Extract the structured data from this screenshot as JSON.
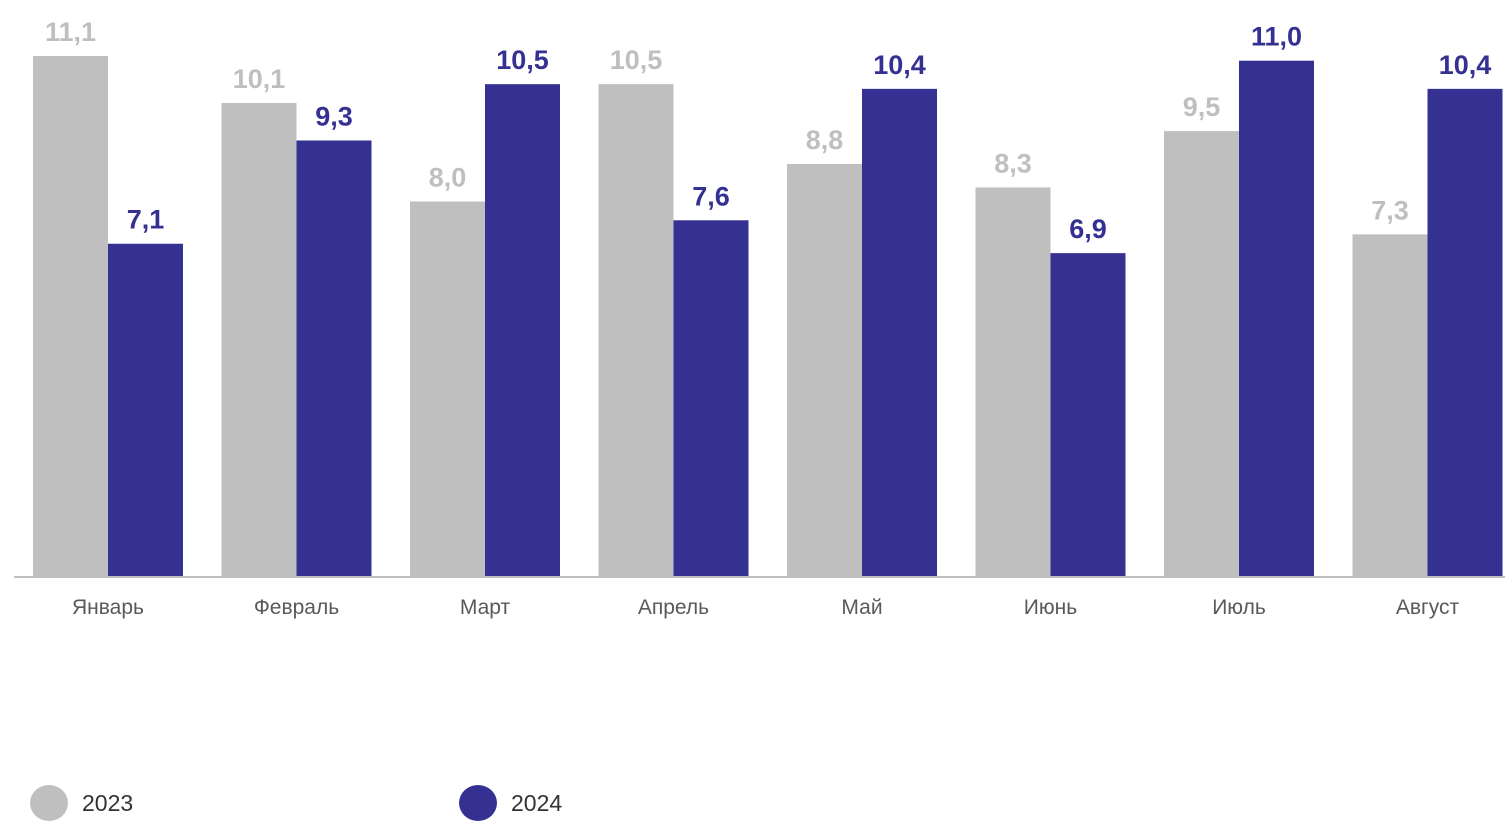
{
  "chart_data": {
    "type": "bar",
    "categories": [
      "Январь",
      "Февраль",
      "Март",
      "Апрель",
      "Май",
      "Июнь",
      "Июль",
      "Август"
    ],
    "series": [
      {
        "name": "2023",
        "color": "#bfbfbf",
        "values": [
          11.1,
          10.1,
          8.0,
          10.5,
          8.8,
          8.3,
          9.5,
          7.3
        ],
        "labels": [
          "11,1",
          "10,1",
          "8,0",
          "10,5",
          "8,8",
          "8,3",
          "9,5",
          "7,3"
        ]
      },
      {
        "name": "2024",
        "color": "#353192",
        "values": [
          7.1,
          9.3,
          10.5,
          7.6,
          10.4,
          6.9,
          11.0,
          10.4
        ],
        "labels": [
          "7,1",
          "9,3",
          "10,5",
          "7,6",
          "10,4",
          "6,9",
          "11,0",
          "10,4"
        ]
      }
    ],
    "title": "",
    "xlabel": "",
    "ylabel": "",
    "ylim": [
      0,
      11.1
    ],
    "grid": false,
    "legend": "bottom-left"
  },
  "legend": {
    "items": [
      {
        "label": "2023",
        "color": "#bfbfbf"
      },
      {
        "label": "2024",
        "color": "#353192"
      }
    ]
  }
}
